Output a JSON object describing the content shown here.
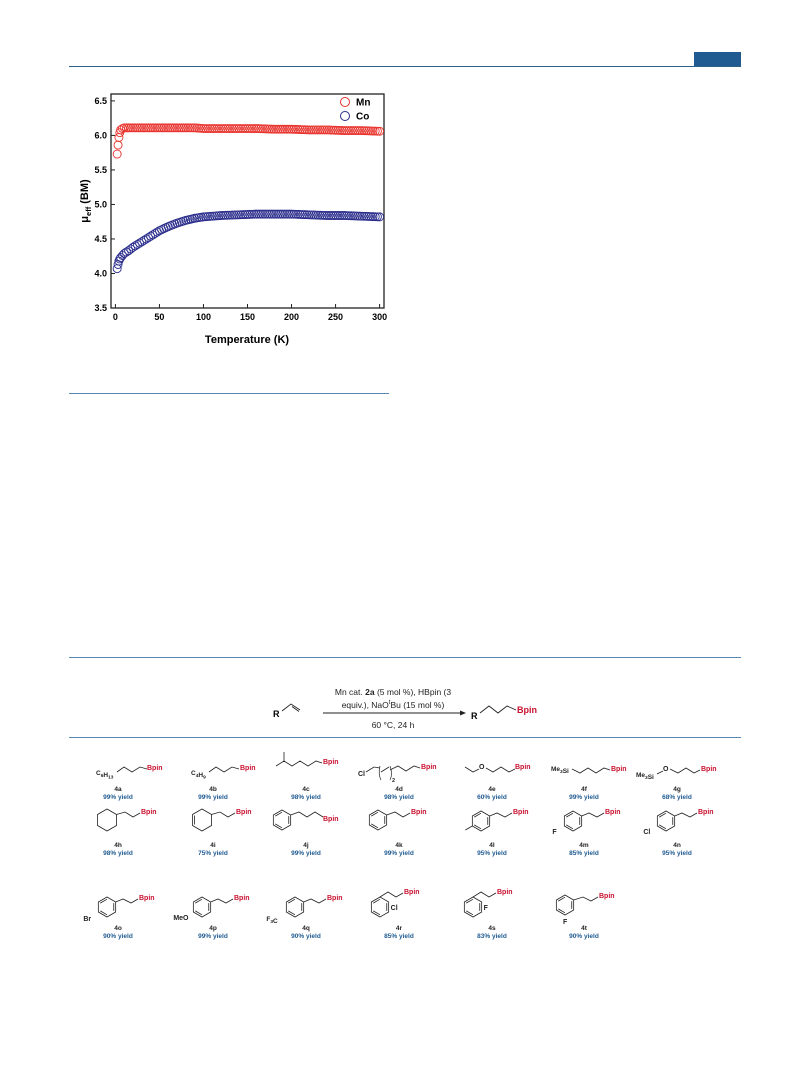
{
  "header": {
    "accent_color": "#1f5a91"
  },
  "chart_data": {
    "type": "scatter",
    "xlabel": "Temperature (K)",
    "ylabel": "μeff (BM)",
    "xlim": [
      -5,
      305
    ],
    "ylim": [
      3.5,
      6.6
    ],
    "xticks": [
      "0",
      "50",
      "100",
      "150",
      "200",
      "250",
      "300"
    ],
    "yticks": [
      "3.5",
      "4.0",
      "4.5",
      "5.0",
      "5.5",
      "6.0",
      "6.5"
    ],
    "legend_position": "top-right",
    "series": [
      {
        "name": "Mn",
        "color": "#e8332d",
        "marker": "open-circle",
        "x": [
          2,
          3,
          4,
          5,
          6,
          8,
          10,
          15,
          20,
          30,
          40,
          50,
          60,
          70,
          80,
          90,
          100,
          120,
          140,
          160,
          180,
          200,
          220,
          240,
          260,
          280,
          300
        ],
        "y": [
          5.73,
          5.86,
          5.97,
          6.04,
          6.08,
          6.1,
          6.11,
          6.11,
          6.11,
          6.11,
          6.11,
          6.11,
          6.11,
          6.11,
          6.11,
          6.11,
          6.1,
          6.1,
          6.1,
          6.1,
          6.09,
          6.09,
          6.08,
          6.08,
          6.07,
          6.07,
          6.06
        ]
      },
      {
        "name": "Co",
        "color": "#2b2d8c",
        "marker": "open-circle",
        "x": [
          2,
          3,
          4,
          5,
          6,
          8,
          10,
          15,
          20,
          30,
          40,
          50,
          60,
          70,
          80,
          90,
          100,
          120,
          140,
          160,
          180,
          200,
          220,
          240,
          260,
          280,
          300
        ],
        "y": [
          4.07,
          4.13,
          4.18,
          4.21,
          4.23,
          4.26,
          4.29,
          4.33,
          4.38,
          4.46,
          4.54,
          4.62,
          4.68,
          4.73,
          4.77,
          4.8,
          4.82,
          4.84,
          4.85,
          4.86,
          4.86,
          4.86,
          4.85,
          4.84,
          4.84,
          4.83,
          4.82
        ]
      }
    ]
  },
  "scheme": {
    "substrate_label": "R",
    "product_r_label": "R",
    "product_bpin_label": "Bpin",
    "conditions_line1_a": "Mn cat. ",
    "conditions_line1_b": "2a",
    "conditions_line1_c": " (5 mol %), HBpin (3",
    "conditions_line2_a": "equiv.), NaO",
    "conditions_line2_b": "t",
    "conditions_line2_c": "Bu (15 mol %)",
    "conditions_below": "60 °C, 24 h",
    "bpin_color": "#c8102e",
    "yield_color": "#1f5a91"
  },
  "compounds": [
    {
      "id": "4a",
      "yield": "99% yield",
      "prefix": "C6H13"
    },
    {
      "id": "4b",
      "yield": "99% yield",
      "prefix": "C4H9"
    },
    {
      "id": "4c",
      "yield": "98% yield"
    },
    {
      "id": "4d",
      "yield": "98% yield",
      "prefix": "Cl",
      "sub": "2"
    },
    {
      "id": "4e",
      "yield": "60% yield",
      "hetero": "O"
    },
    {
      "id": "4f",
      "yield": "99% yield",
      "prefix": "Me3Si"
    },
    {
      "id": "4g",
      "yield": "68% yield",
      "prefix": "Me3Si",
      "hetero": "O"
    },
    {
      "id": "4h",
      "yield": "98% yield"
    },
    {
      "id": "4i",
      "yield": "75% yield"
    },
    {
      "id": "4j",
      "yield": "99% yield"
    },
    {
      "id": "4k",
      "yield": "99% yield"
    },
    {
      "id": "4l",
      "yield": "95% yield"
    },
    {
      "id": "4m",
      "yield": "85% yield",
      "subst": "F"
    },
    {
      "id": "4n",
      "yield": "95% yield",
      "subst": "Cl"
    },
    {
      "id": "4o",
      "yield": "90% yield",
      "subst": "Br"
    },
    {
      "id": "4p",
      "yield": "99% yield",
      "subst": "MeO"
    },
    {
      "id": "4q",
      "yield": "90% yield",
      "subst": "F3C"
    },
    {
      "id": "4r",
      "yield": "85% yield",
      "subst": "Cl"
    },
    {
      "id": "4s",
      "yield": "83% yield",
      "subst": "F"
    },
    {
      "id": "4t",
      "yield": "90% yield",
      "subst": "F"
    }
  ]
}
